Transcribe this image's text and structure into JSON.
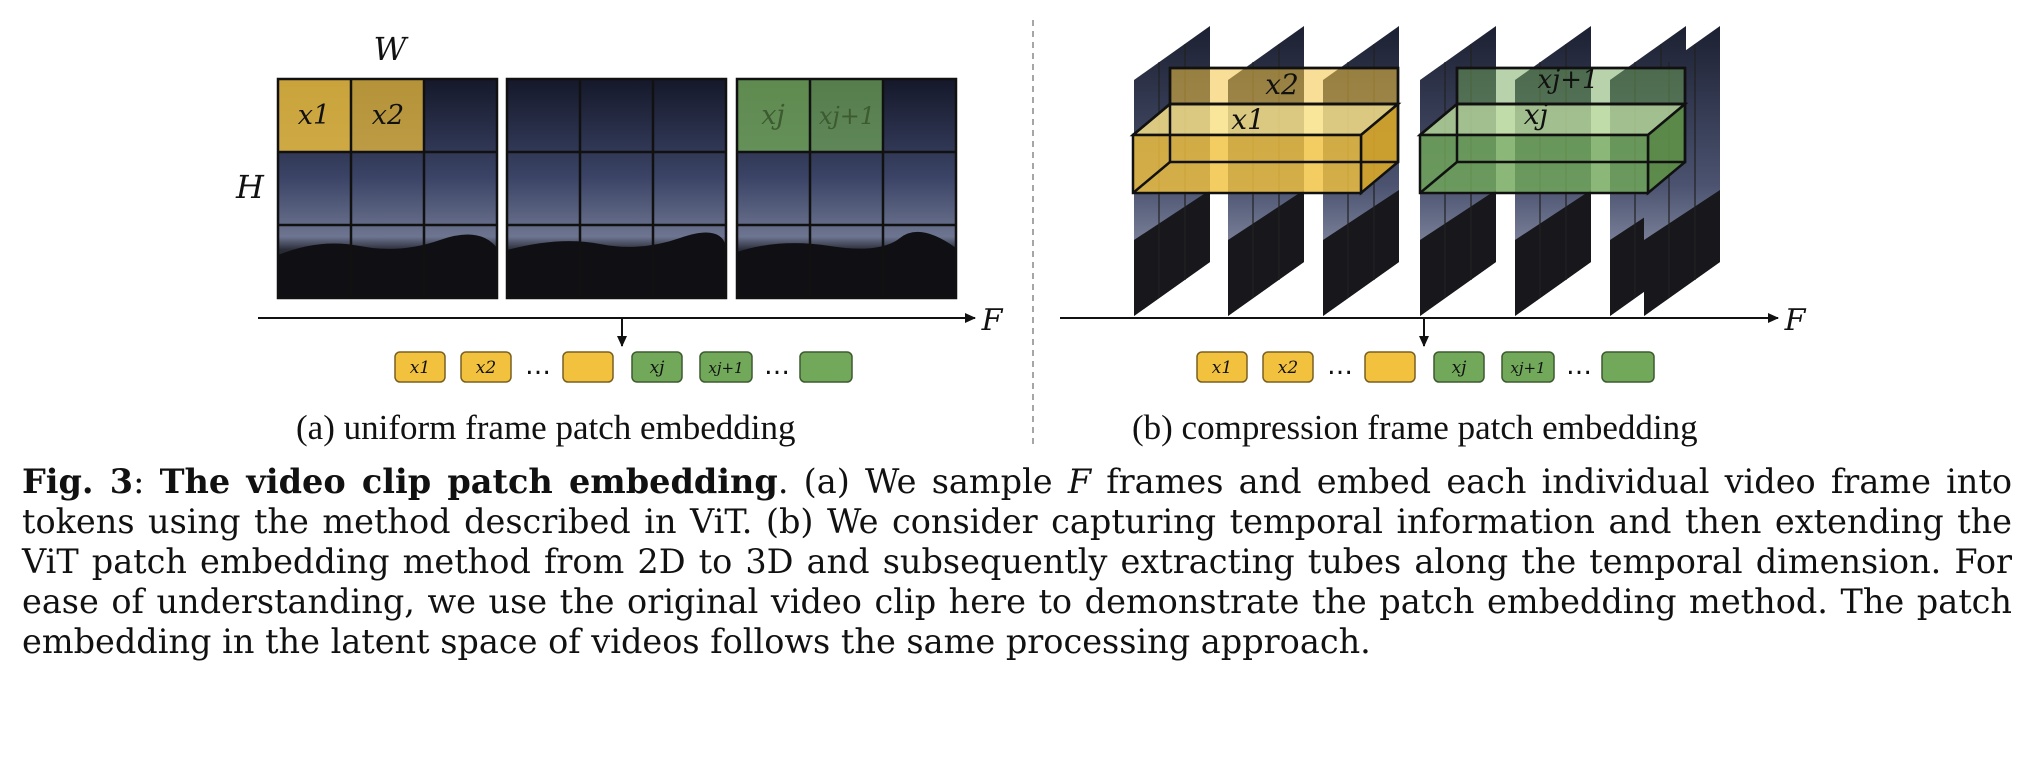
{
  "figure": {
    "panel_a": {
      "label_width": "W",
      "label_height": "H",
      "patch_labels": [
        "x1",
        "x2",
        "xj",
        "xj+1"
      ],
      "axis_label": "F",
      "tokens": [
        "x1",
        "x2",
        "",
        "xj",
        "xj+1",
        ""
      ],
      "caption": "(a) uniform frame patch embedding"
    },
    "panel_b": {
      "tube_labels": [
        "x2",
        "x1",
        "xj+1",
        "xj"
      ],
      "axis_label": "F",
      "tokens": [
        "x1",
        "x2",
        "",
        "xj",
        "xj+1",
        ""
      ],
      "caption": "(b) compression frame patch embedding"
    },
    "colors": {
      "yellow": "#f2c23f",
      "green": "#72a85a",
      "night_sky": "#1e2236"
    }
  },
  "caption": {
    "label": "Fig. 3",
    "title": "The video clip patch embedding",
    "part1": ". (a) We sample ",
    "var": "F",
    "part2": " frames and embed each individual video frame into tokens using the method described in ViT. (b) We consider capturing temporal information and then extending the ViT patch embedding method from 2D to 3D and subsequently extracting tubes along the temporal dimension. For ease of understanding, we use the original video clip here to demonstrate the patch embedding method. The patch embedding in the latent space of videos follows the same processing approach."
  }
}
